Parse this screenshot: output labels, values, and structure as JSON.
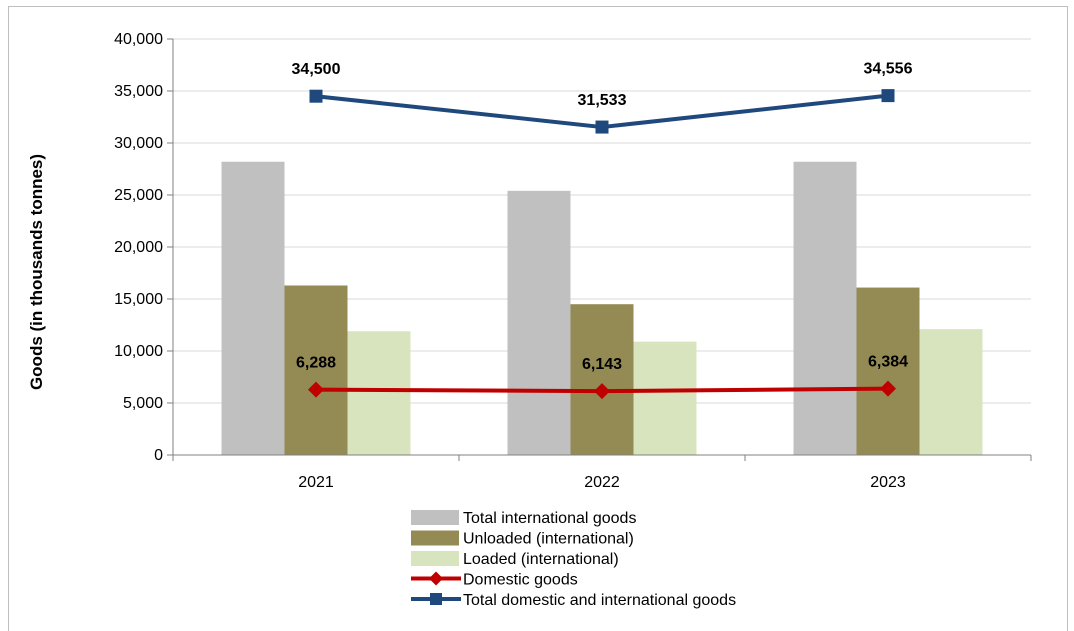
{
  "chart_data": {
    "type": "bar",
    "categories": [
      "2021",
      "2022",
      "2023"
    ],
    "ylabel": "Goods (in thousands tonnes)",
    "xlabel": "",
    "ylim": [
      0,
      40000
    ],
    "yticks": [
      0,
      5000,
      10000,
      15000,
      20000,
      25000,
      30000,
      35000,
      40000
    ],
    "ytick_labels": [
      "0",
      "5,000",
      "10,000",
      "15,000",
      "20,000",
      "25,000",
      "30,000",
      "35,000",
      "40,000"
    ],
    "grid": true,
    "legend_position": "bottom",
    "series": [
      {
        "name": "Total international goods",
        "kind": "bar",
        "color": "#c0c0c0",
        "values": [
          28200,
          25400,
          28200
        ]
      },
      {
        "name": "Unloaded (international)",
        "kind": "bar",
        "color": "#948a54",
        "values": [
          16300,
          14500,
          16100
        ]
      },
      {
        "name": "Loaded (international)",
        "kind": "bar",
        "color": "#d7e4bd",
        "values": [
          11900,
          10900,
          12100
        ]
      },
      {
        "name": "Domestic goods",
        "kind": "line",
        "marker": "diamond",
        "color": "#c00000",
        "values": [
          6288,
          6143,
          6384
        ],
        "labels": [
          "6,288",
          "6,143",
          "6,384"
        ]
      },
      {
        "name": "Total domestic and international goods",
        "kind": "line",
        "marker": "square",
        "color": "#1f497d",
        "values": [
          34500,
          31533,
          34556
        ],
        "labels": [
          "34,500",
          "31,533",
          "34,556"
        ]
      }
    ]
  }
}
